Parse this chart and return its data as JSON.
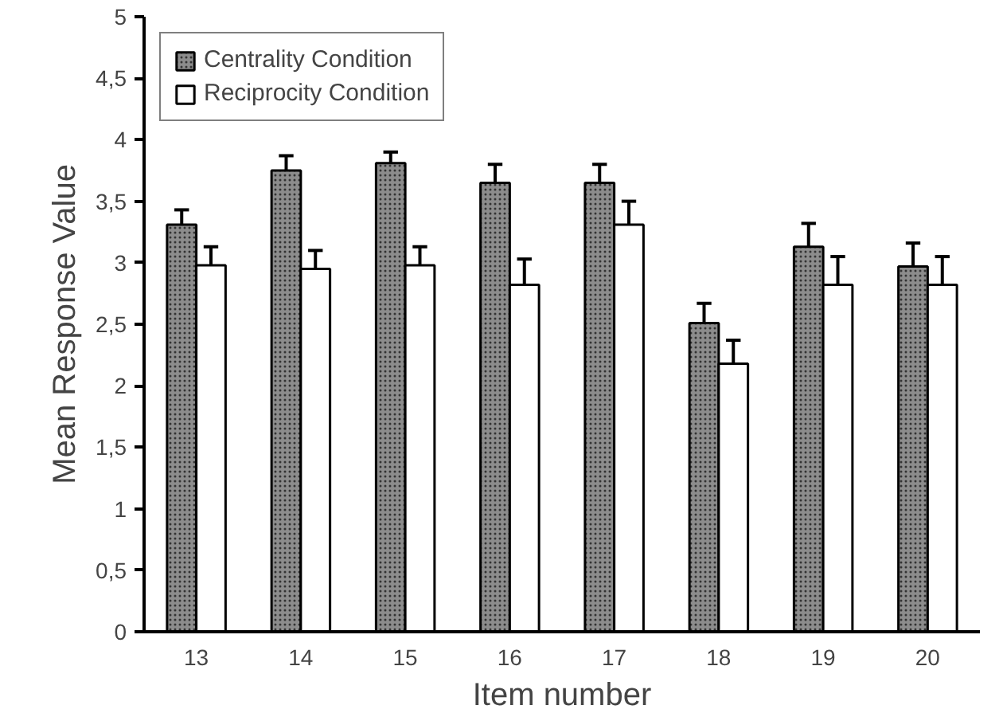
{
  "chart_data": {
    "type": "bar",
    "xlabel": "Item number",
    "ylabel": "Mean Response Value",
    "categories": [
      "13",
      "14",
      "15",
      "16",
      "17",
      "18",
      "19",
      "20"
    ],
    "series": [
      {
        "name": "Centrality Condition",
        "color": "#8c8c8c",
        "values": [
          3.31,
          3.75,
          3.81,
          3.65,
          3.65,
          2.51,
          3.13,
          2.97
        ],
        "errors": [
          [
            3.31,
            3.43
          ],
          [
            3.75,
            3.87
          ],
          [
            3.81,
            3.9
          ],
          [
            3.65,
            3.8
          ],
          [
            3.65,
            3.8
          ],
          [
            2.51,
            2.67
          ],
          [
            3.13,
            3.32
          ],
          [
            2.97,
            3.16
          ]
        ]
      },
      {
        "name": "Reciprocity Condition",
        "color": "#ffffff",
        "values": [
          2.98,
          2.95,
          2.98,
          2.82,
          3.31,
          2.18,
          2.82,
          2.82
        ],
        "errors": [
          [
            2.98,
            3.13
          ],
          [
            2.95,
            3.1
          ],
          [
            2.98,
            3.13
          ],
          [
            2.82,
            3.03
          ],
          [
            3.31,
            3.5
          ],
          [
            2.18,
            2.37
          ],
          [
            2.82,
            3.05
          ],
          [
            2.82,
            3.05
          ]
        ]
      }
    ],
    "ylim": [
      0,
      5
    ],
    "yticks": [
      0,
      {
        "value": 0.5,
        "label": "0,5"
      },
      1,
      {
        "value": 1.5,
        "label": "1,5"
      },
      2,
      {
        "value": 2.5,
        "label": "2,5"
      },
      3,
      {
        "value": 3.5,
        "label": "3,5"
      },
      4,
      {
        "value": 4.5,
        "label": "4,5"
      },
      5
    ],
    "legend": "top left",
    "grid": false
  }
}
